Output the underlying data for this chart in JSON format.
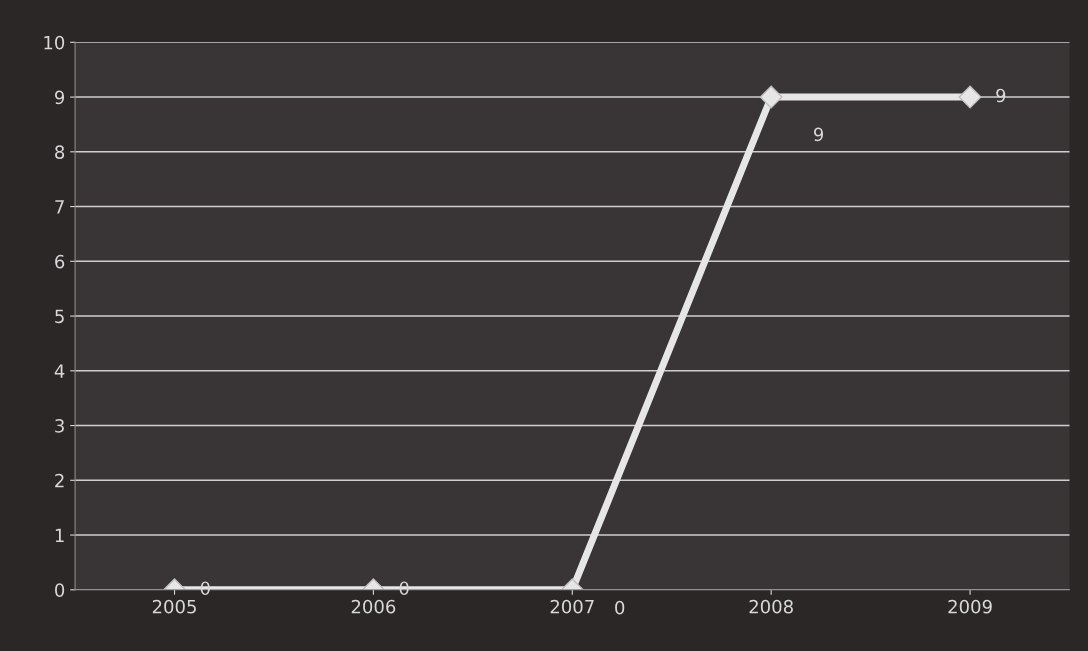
{
  "chart_data": {
    "type": "line",
    "categories": [
      "2005",
      "2006",
      "2007",
      "2008",
      "2009"
    ],
    "series": [
      {
        "color": "#e6e6e6",
        "values": [
          0,
          0,
          0,
          9,
          9
        ]
      }
    ],
    "ylim": [
      0,
      10
    ],
    "yticks": [
      0,
      1,
      2,
      3,
      4,
      5,
      6,
      7,
      8,
      9,
      10
    ],
    "grid": "y",
    "marker": "diamond",
    "line_style": "solid",
    "data_labels": true
  }
}
